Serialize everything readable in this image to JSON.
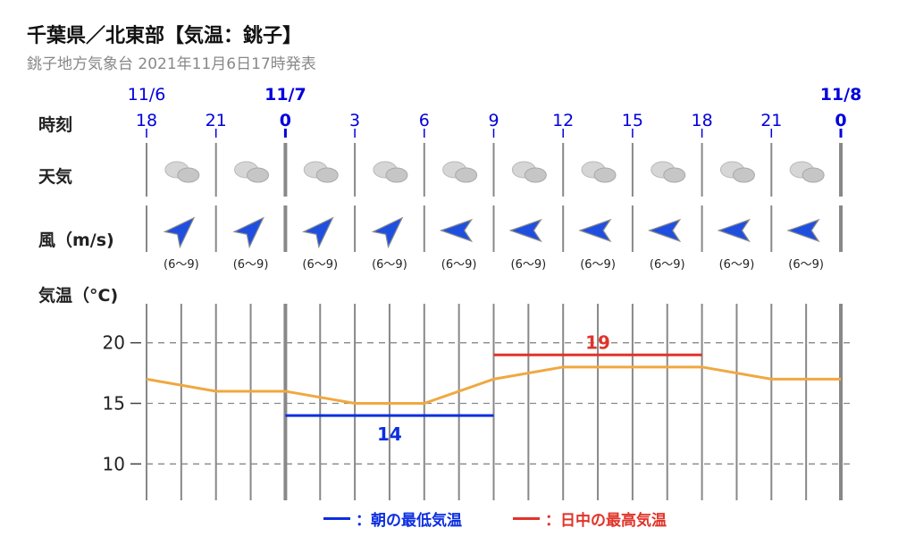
{
  "header": {
    "title": "千葉県／北東部【気温：銚子】",
    "subtitle": "銚子地方気象台 2021年11月6日17時発表"
  },
  "row_labels": {
    "time": "時刻",
    "weather": "天気",
    "wind": "風（m/s)",
    "temp": "気温（°C)"
  },
  "colors": {
    "time_text": "#0000dd",
    "temp_line": "#f0a840",
    "min_line": "#0b2ee0",
    "max_line": "#e0342a",
    "grid": "#888888",
    "arrow": "#1f4fe0"
  },
  "legend": {
    "min_label": "：朝の最低気温",
    "max_label": "：日中の最高気温"
  },
  "chart_data": {
    "type": "line",
    "dates": [
      {
        "label": "11/6",
        "at_index": 0
      },
      {
        "label": "11/7",
        "at_index": 2
      },
      {
        "label": "11/8",
        "at_index": 10
      }
    ],
    "hours": [
      "18",
      "21",
      "0",
      "3",
      "6",
      "9",
      "12",
      "15",
      "18",
      "21",
      "0"
    ],
    "bold_hours_index": [
      2,
      10
    ],
    "weather_icons": [
      "cloud-icon",
      "cloud-icon",
      "cloud-icon",
      "cloud-icon",
      "cloud-icon",
      "cloud-icon",
      "cloud-icon",
      "cloud-icon",
      "cloud-icon",
      "cloud-icon"
    ],
    "wind": [
      {
        "direction": "NE",
        "range": "(6〜9)"
      },
      {
        "direction": "NE",
        "range": "(6〜9)"
      },
      {
        "direction": "NE",
        "range": "(6〜9)"
      },
      {
        "direction": "NE",
        "range": "(6〜9)"
      },
      {
        "direction": "W",
        "range": "(6〜9)"
      },
      {
        "direction": "W",
        "range": "(6〜9)"
      },
      {
        "direction": "W",
        "range": "(6〜9)"
      },
      {
        "direction": "W",
        "range": "(6〜9)"
      },
      {
        "direction": "W",
        "range": "(6〜9)"
      },
      {
        "direction": "W",
        "range": "(6〜9)"
      }
    ],
    "temperature": [
      17,
      16,
      16,
      15,
      15,
      17,
      18,
      18,
      18,
      17,
      17
    ],
    "ylim": [
      7,
      23
    ],
    "yticks": [
      10,
      15,
      20
    ],
    "min_temp": {
      "value": 14,
      "label": "14",
      "from_index": 2,
      "to_index": 5
    },
    "max_temp": {
      "value": 19,
      "label": "19",
      "from_index": 5,
      "to_index": 8
    }
  }
}
